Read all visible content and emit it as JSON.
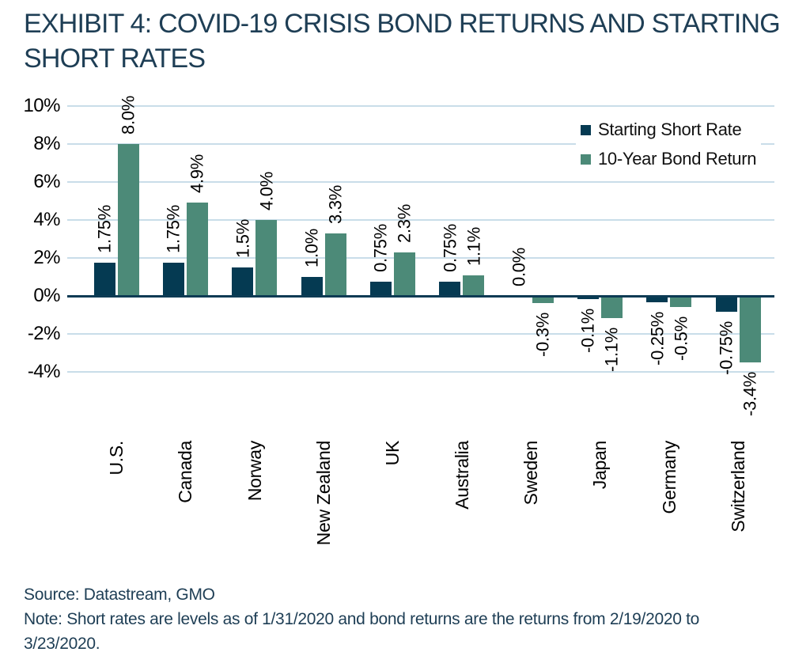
{
  "title": {
    "line1": "EXHIBIT 4: COVID-19 CRISIS BOND RETURNS AND STARTING",
    "line2": "SHORT RATES"
  },
  "legend": {
    "items": [
      {
        "label": "Starting Short Rate",
        "color": "#053A52"
      },
      {
        "label": "10-Year Bond Return",
        "color": "#4C8A78"
      }
    ]
  },
  "footer": {
    "source": "Source: Datastream, GMO",
    "note_line1": "Note: Short rates are levels as of 1/31/2020 and bond returns are the returns from 2/19/2020 to",
    "note_line2": "3/23/2020."
  },
  "colors": {
    "navy": "#053A52",
    "green": "#4C8A78",
    "gridline": "#C9DDE9",
    "axis": "#0C3B54",
    "title_text": "#1E3E55"
  },
  "chart_data": {
    "type": "bar",
    "title": "EXHIBIT 4: COVID-19 CRISIS BOND RETURNS AND STARTING SHORT RATES",
    "categories": [
      "U.S.",
      "Canada",
      "Norway",
      "New Zealand",
      "UK",
      "Australia",
      "Sweden",
      "Japan",
      "Germany",
      "Switzerland"
    ],
    "series": [
      {
        "name": "Starting Short Rate",
        "color": "#053A52",
        "values": [
          1.75,
          1.75,
          1.5,
          1.0,
          0.75,
          0.75,
          0.0,
          -0.1,
          -0.25,
          -0.75
        ],
        "labels": [
          "1.75%",
          "1.75%",
          "1.5%",
          "1.0%",
          "0.75%",
          "0.75%",
          "0.0%",
          "-0.1%",
          "-0.25%",
          "-0.75%"
        ]
      },
      {
        "name": "10-Year Bond Return",
        "color": "#4C8A78",
        "values": [
          8.0,
          4.9,
          4.0,
          3.3,
          2.3,
          1.1,
          -0.3,
          -1.1,
          -0.5,
          -3.4
        ],
        "labels": [
          "8.0%",
          "4.9%",
          "4.0%",
          "3.3%",
          "2.3%",
          "1.1%",
          "-0.3%",
          "-1.1%",
          "-0.5%",
          "-3.4%"
        ]
      }
    ],
    "y_ticks": [
      "10%",
      "8%",
      "6%",
      "4%",
      "2%",
      "0%",
      "-2%",
      "-4%"
    ],
    "y_tick_values": [
      10,
      8,
      6,
      4,
      2,
      0,
      -2,
      -4
    ],
    "ylim": [
      -4,
      10
    ],
    "xlabel": "",
    "ylabel": "",
    "grid": true,
    "legend_position": "top-right",
    "value_label_rotation": 90,
    "category_label_rotation": 90
  }
}
